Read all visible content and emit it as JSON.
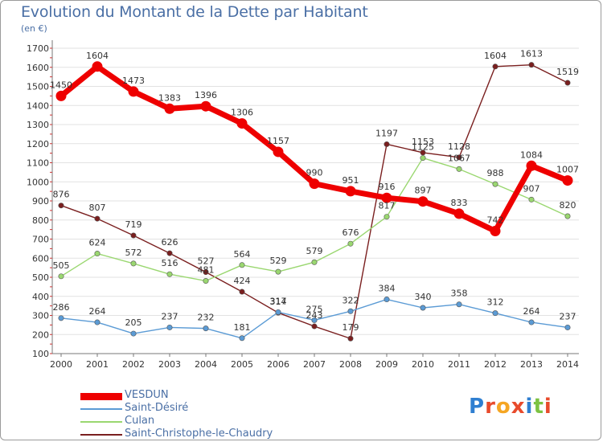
{
  "chart_data": {
    "type": "line",
    "title": "Evolution du Montant de la Dette par Habitant",
    "subtitle": "(en €)",
    "x": [
      "2000",
      "2001",
      "2002",
      "2003",
      "2004",
      "2005",
      "2006",
      "2007",
      "2008",
      "2009",
      "2010",
      "2011",
      "2012",
      "2013",
      "2014"
    ],
    "y_ticks": [
      100,
      200,
      300,
      400,
      500,
      600,
      700,
      800,
      900,
      1000,
      1100,
      1200,
      1300,
      1400,
      1500,
      1600,
      1700
    ],
    "ylim": [
      100,
      1700
    ],
    "grid": "horizontal",
    "legend_position": "bottom-left",
    "series": [
      {
        "name": "VESDUN",
        "color": "#ee0000",
        "width": "bold",
        "values": [
          1450,
          1604,
          1473,
          1383,
          1396,
          1306,
          1157,
          990,
          951,
          916,
          897,
          833,
          742,
          1084,
          1007
        ],
        "labels": [
          "1450",
          "1604",
          "1473",
          "1383",
          "1396",
          "1306",
          "1157",
          "990",
          "951",
          "916",
          "897",
          "833",
          "742",
          "1084",
          "1007"
        ]
      },
      {
        "name": "Saint-Désiré",
        "color": "#5b9bd5",
        "width": "thin",
        "values": [
          286,
          264,
          205,
          237,
          232,
          181,
          317,
          275,
          322,
          384,
          340,
          358,
          312,
          264,
          237
        ],
        "labels": [
          "286",
          "264",
          "205",
          "237",
          "232",
          "181",
          "317",
          "275",
          "322",
          "384",
          "340",
          "358",
          "312",
          "264",
          "237"
        ]
      },
      {
        "name": "Culan",
        "color": "#9ad770",
        "width": "thin",
        "values": [
          505,
          624,
          572,
          516,
          481,
          564,
          529,
          579,
          676,
          817,
          1125,
          1067,
          988,
          907,
          820
        ],
        "labels": [
          "505",
          "624",
          "572",
          "516",
          "481",
          "564",
          "529",
          "579",
          "676",
          "817",
          "1125",
          "1067",
          "988",
          "907",
          "820"
        ]
      },
      {
        "name": "Saint-Christophe-le-Chaudry",
        "color": "#7a1f1f",
        "width": "thin",
        "values": [
          876,
          807,
          719,
          626,
          527,
          424,
          314,
          243,
          179,
          1197,
          1153,
          1128,
          1604,
          1613,
          1519
        ],
        "labels": [
          "876",
          "807",
          "719",
          "626",
          "527",
          "424",
          "314",
          "243",
          "179",
          "1197",
          "1153",
          "1128",
          "1604",
          "1613",
          "1519"
        ]
      }
    ]
  },
  "logo": {
    "text": "Proxiti",
    "colors": [
      "#2f7fd1",
      "#e84b2c",
      "#f5a623",
      "#e84b2c",
      "#2f7fd1",
      "#7cc242",
      "#e84b2c"
    ]
  }
}
